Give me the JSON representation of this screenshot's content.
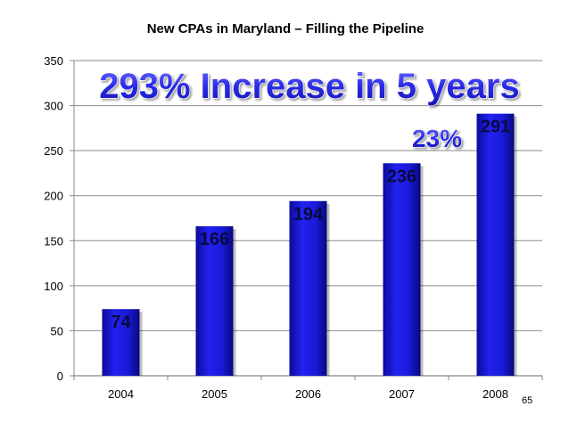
{
  "chart_data": {
    "type": "bar",
    "title": "New CPAs in Maryland – Filling the Pipeline",
    "categories": [
      "2004",
      "2005",
      "2006",
      "2007",
      "2008"
    ],
    "values": [
      74,
      166,
      194,
      236,
      291
    ],
    "data_labels": [
      "74",
      "166",
      "194",
      "236",
      "291"
    ],
    "ylim": [
      0,
      350
    ],
    "yticks": [
      0,
      50,
      100,
      150,
      200,
      250,
      300,
      350
    ],
    "grid": true,
    "bar_color": "#1a1ae0",
    "annotations": [
      {
        "text": "293% Increase in 5 years",
        "color": "#2a2ae6"
      },
      {
        "text": "23%",
        "color": "#2a2ae6"
      }
    ]
  },
  "page_number": "65"
}
